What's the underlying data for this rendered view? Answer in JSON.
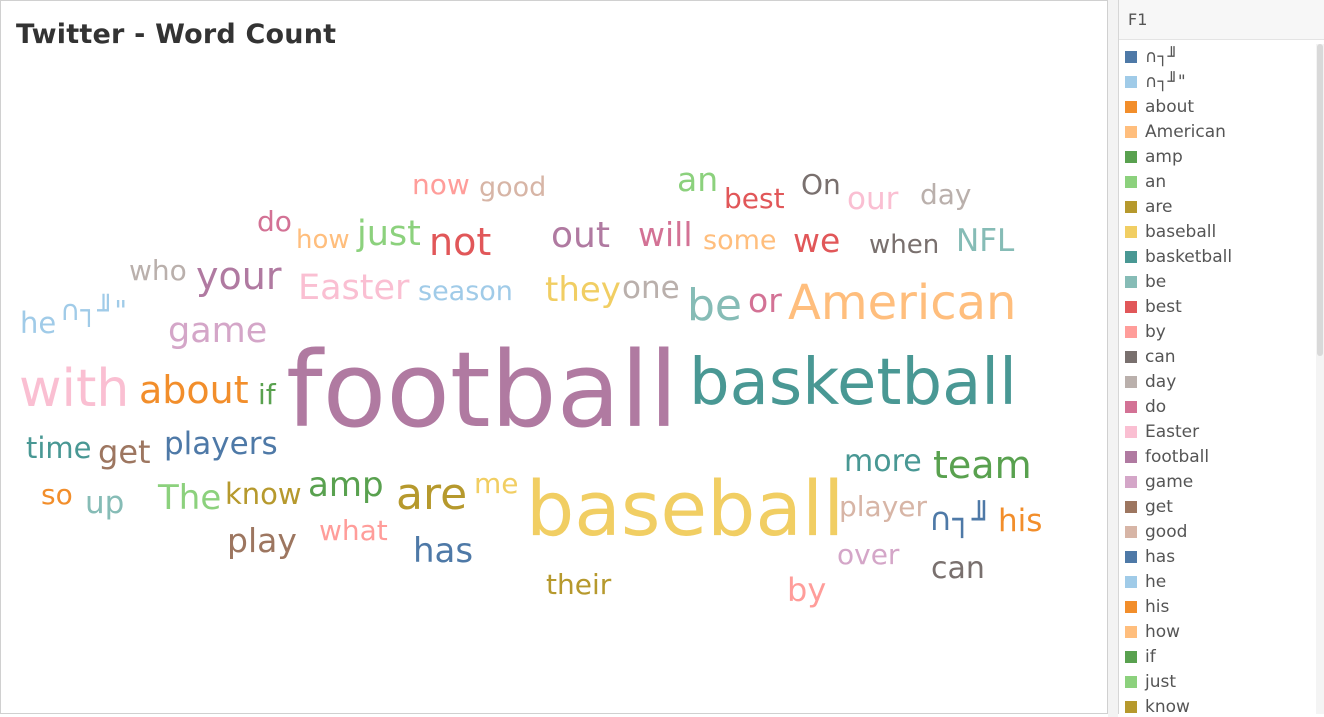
{
  "title": "Twitter - Word Count",
  "legend": {
    "header": "F1",
    "items": [
      {
        "label": "∩┐╜",
        "color": "#4e79a7"
      },
      {
        "label": "∩┐╜\"",
        "color": "#a0cbe8"
      },
      {
        "label": "about",
        "color": "#f28e2b"
      },
      {
        "label": "American",
        "color": "#ffbe7d"
      },
      {
        "label": "amp",
        "color": "#59a14f"
      },
      {
        "label": "an",
        "color": "#8cd17d"
      },
      {
        "label": "are",
        "color": "#b6992d"
      },
      {
        "label": "baseball",
        "color": "#f1ce63"
      },
      {
        "label": "basketball",
        "color": "#499894"
      },
      {
        "label": "be",
        "color": "#86bcb6"
      },
      {
        "label": "best",
        "color": "#e15759"
      },
      {
        "label": "by",
        "color": "#ff9d9a"
      },
      {
        "label": "can",
        "color": "#79706e"
      },
      {
        "label": "day",
        "color": "#bab0ac"
      },
      {
        "label": "do",
        "color": "#d37295"
      },
      {
        "label": "Easter",
        "color": "#fabfd2"
      },
      {
        "label": "football",
        "color": "#b07aa1"
      },
      {
        "label": "game",
        "color": "#d4a6c8"
      },
      {
        "label": "get",
        "color": "#9d7660"
      },
      {
        "label": "good",
        "color": "#d7b5a6"
      },
      {
        "label": "has",
        "color": "#4e79a7"
      },
      {
        "label": "he",
        "color": "#a0cbe8"
      },
      {
        "label": "his",
        "color": "#f28e2b"
      },
      {
        "label": "how",
        "color": "#ffbe7d"
      },
      {
        "label": "if",
        "color": "#59a14f"
      },
      {
        "label": "just",
        "color": "#8cd17d"
      },
      {
        "label": "know",
        "color": "#b6992d"
      }
    ]
  },
  "words": [
    {
      "text": "football",
      "color": "#b07aa1"
    },
    {
      "text": "basketball",
      "color": "#499894"
    },
    {
      "text": "baseball",
      "color": "#f1ce63"
    },
    {
      "text": "American",
      "color": "#ffbe7d"
    },
    {
      "text": "with",
      "color": "#fabfd2"
    },
    {
      "text": "about",
      "color": "#f28e2b"
    },
    {
      "text": "are",
      "color": "#b6992d"
    },
    {
      "text": "team",
      "color": "#59a14f"
    },
    {
      "text": "your",
      "color": "#b07aa1"
    },
    {
      "text": "not",
      "color": "#e15759"
    },
    {
      "text": "Easter",
      "color": "#fabfd2"
    },
    {
      "text": "be",
      "color": "#86bcb6"
    },
    {
      "text": "out",
      "color": "#b07aa1"
    },
    {
      "text": "game",
      "color": "#d4a6c8"
    },
    {
      "text": "players",
      "color": "#4e79a7"
    },
    {
      "text": "more",
      "color": "#499894"
    },
    {
      "text": "we",
      "color": "#e15759"
    },
    {
      "text": "NFL",
      "color": "#86bcb6"
    },
    {
      "text": "has",
      "color": "#4e79a7"
    },
    {
      "text": "amp",
      "color": "#59a14f"
    },
    {
      "text": "play",
      "color": "#9d7660"
    },
    {
      "text": "they",
      "color": "#f1ce63"
    },
    {
      "text": "one",
      "color": "#bab0ac"
    },
    {
      "text": "will",
      "color": "#d37295"
    },
    {
      "text": "our",
      "color": "#fabfd2"
    },
    {
      "text": "just",
      "color": "#8cd17d"
    },
    {
      "text": "season",
      "color": "#a0cbe8"
    },
    {
      "text": "The",
      "color": "#8cd17d"
    },
    {
      "text": "time",
      "color": "#499894"
    },
    {
      "text": "get",
      "color": "#9d7660"
    },
    {
      "text": "an",
      "color": "#8cd17d"
    },
    {
      "text": "best",
      "color": "#e15759"
    },
    {
      "text": "On",
      "color": "#79706e"
    },
    {
      "text": "day",
      "color": "#bab0ac"
    },
    {
      "text": "now",
      "color": "#ff9d9a"
    },
    {
      "text": "good",
      "color": "#d7b5a6"
    },
    {
      "text": "do",
      "color": "#d37295"
    },
    {
      "text": "how",
      "color": "#ffbe7d"
    },
    {
      "text": "some",
      "color": "#ffbe7d"
    },
    {
      "text": "when",
      "color": "#79706e"
    },
    {
      "text": "who",
      "color": "#bab0ac"
    },
    {
      "text": "he",
      "color": "#a0cbe8"
    },
    {
      "text": "∩┐╜\"",
      "color": "#a0cbe8"
    },
    {
      "text": "or",
      "color": "#d37295"
    },
    {
      "text": "if",
      "color": "#59a14f"
    },
    {
      "text": "so",
      "color": "#f28e2b"
    },
    {
      "text": "up",
      "color": "#86bcb6"
    },
    {
      "text": "know",
      "color": "#b6992d"
    },
    {
      "text": "me",
      "color": "#f1ce63"
    },
    {
      "text": "what",
      "color": "#ff9d9a"
    },
    {
      "text": "player",
      "color": "#d7b5a6"
    },
    {
      "text": "∩┐╜",
      "color": "#4e79a7"
    },
    {
      "text": "his",
      "color": "#f28e2b"
    },
    {
      "text": "over",
      "color": "#d4a6c8"
    },
    {
      "text": "can",
      "color": "#79706e"
    },
    {
      "text": "their",
      "color": "#b6992d"
    },
    {
      "text": "by",
      "color": "#ff9d9a"
    }
  ]
}
